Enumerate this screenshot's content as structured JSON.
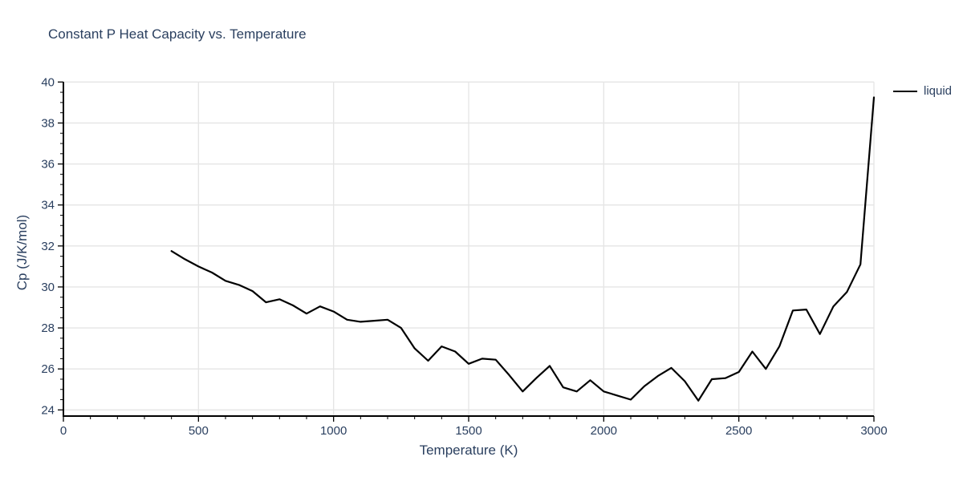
{
  "title": "Constant P Heat Capacity vs. Temperature",
  "legend": {
    "position": "top-right-outside",
    "items": [
      {
        "label": "liquid",
        "swatch_color": "#000000"
      }
    ]
  },
  "colors": {
    "text": "#2a3f5f",
    "grid": "#e5e5e5",
    "axis": "#000000",
    "line": "#000000",
    "background": "#ffffff"
  },
  "chart_data": {
    "type": "line",
    "title": "Constant P Heat Capacity vs. Temperature",
    "xlabel": "Temperature (K)",
    "ylabel": "Cp (J/K/mol)",
    "xlim": [
      0,
      3000
    ],
    "ylim": [
      23.7,
      40
    ],
    "x_ticks": [
      0,
      500,
      1000,
      1500,
      2000,
      2500,
      3000
    ],
    "y_ticks": [
      24,
      26,
      28,
      30,
      32,
      34,
      36,
      38,
      40
    ],
    "x_minor_step": 100,
    "y_minor_step": 0.5,
    "grid": true,
    "legend_position": "top-right-outside",
    "series": [
      {
        "name": "liquid",
        "color": "#000000",
        "x": [
          400,
          450,
          500,
          550,
          600,
          650,
          700,
          750,
          800,
          850,
          900,
          950,
          1000,
          1050,
          1100,
          1150,
          1200,
          1250,
          1300,
          1350,
          1400,
          1450,
          1500,
          1550,
          1600,
          1650,
          1700,
          1750,
          1800,
          1850,
          1900,
          1950,
          2000,
          2050,
          2100,
          2150,
          2200,
          2250,
          2300,
          2350,
          2400,
          2450,
          2500,
          2550,
          2600,
          2650,
          2700,
          2750,
          2800,
          2850,
          2900,
          2950,
          3000
        ],
        "y": [
          31.75,
          31.35,
          31.0,
          30.7,
          30.3,
          30.1,
          29.8,
          29.25,
          29.4,
          29.1,
          28.7,
          29.05,
          28.8,
          28.4,
          28.3,
          28.35,
          28.4,
          28.0,
          27.0,
          26.4,
          27.1,
          26.85,
          26.25,
          26.5,
          26.45,
          25.7,
          24.9,
          25.55,
          26.15,
          25.1,
          24.9,
          25.45,
          24.9,
          24.7,
          24.5,
          25.15,
          25.65,
          26.05,
          25.4,
          24.45,
          25.5,
          25.55,
          25.85,
          26.85,
          26.0,
          27.1,
          28.85,
          28.9,
          27.7,
          29.05,
          29.75,
          31.1,
          39.25
        ]
      }
    ]
  }
}
